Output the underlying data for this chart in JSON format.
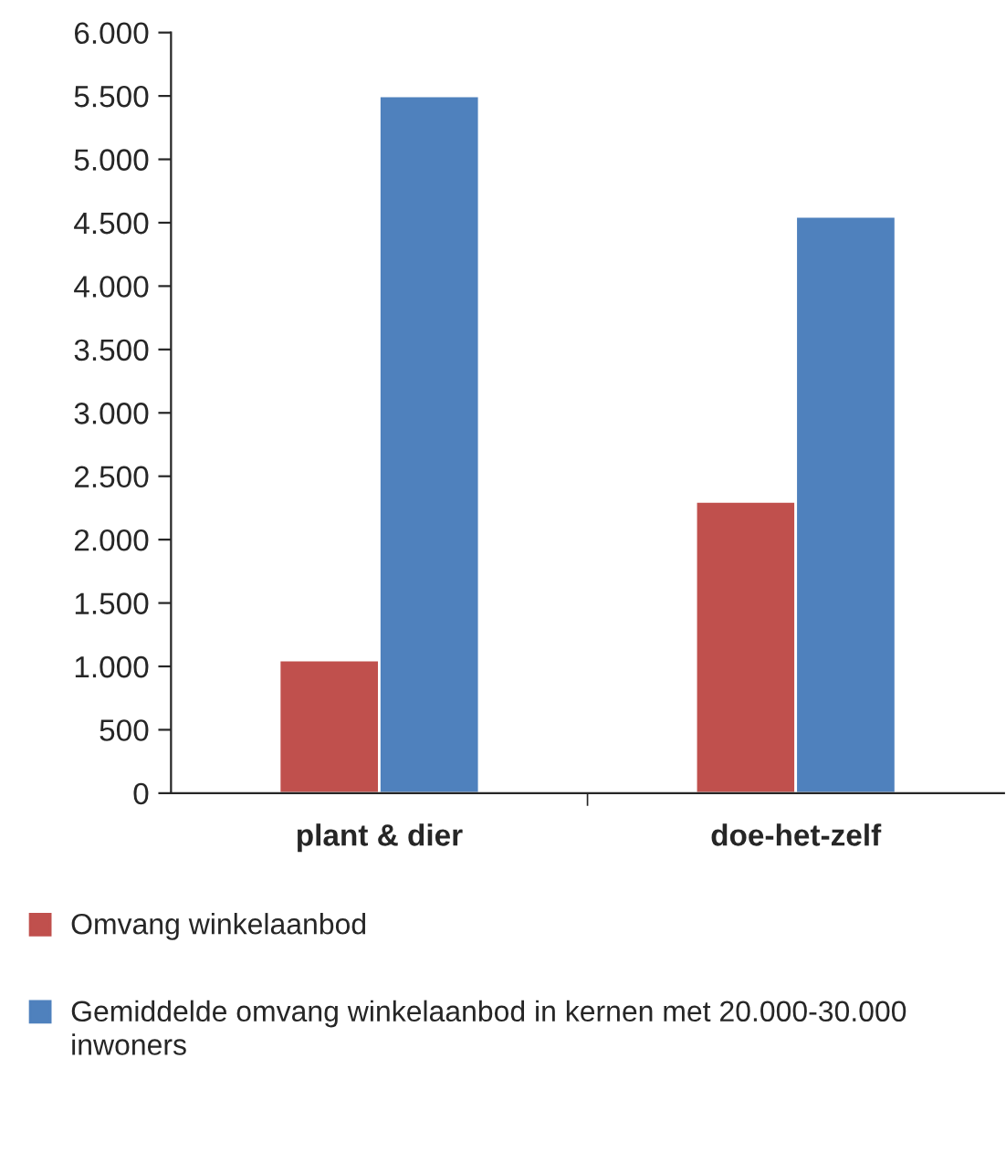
{
  "chart_data": {
    "type": "bar",
    "categories": [
      "plant & dier",
      "doe-het-zelf"
    ],
    "series": [
      {
        "name": "Omvang winkelaanbod",
        "color": "#c0504d",
        "values": [
          1050,
          2300
        ]
      },
      {
        "name": "Gemiddelde omvang winkelaanbod in kernen met 20.000-30.000 inwoners",
        "color": "#4f81bd",
        "values": [
          5500,
          4550
        ]
      }
    ],
    "ylim": [
      0,
      6000
    ],
    "yticks": [
      {
        "value": 0,
        "label": "0"
      },
      {
        "value": 500,
        "label": "500"
      },
      {
        "value": 1000,
        "label": "1.000"
      },
      {
        "value": 1500,
        "label": "1.500"
      },
      {
        "value": 2000,
        "label": "2.000"
      },
      {
        "value": 2500,
        "label": "2.500"
      },
      {
        "value": 3000,
        "label": "3.000"
      },
      {
        "value": 3500,
        "label": "3.500"
      },
      {
        "value": 4000,
        "label": "4.000"
      },
      {
        "value": 4500,
        "label": "4.500"
      },
      {
        "value": 5000,
        "label": "5.000"
      },
      {
        "value": 5500,
        "label": "5.500"
      },
      {
        "value": 6000,
        "label": "6.000"
      }
    ],
    "grid": false,
    "legend": "bottom"
  }
}
